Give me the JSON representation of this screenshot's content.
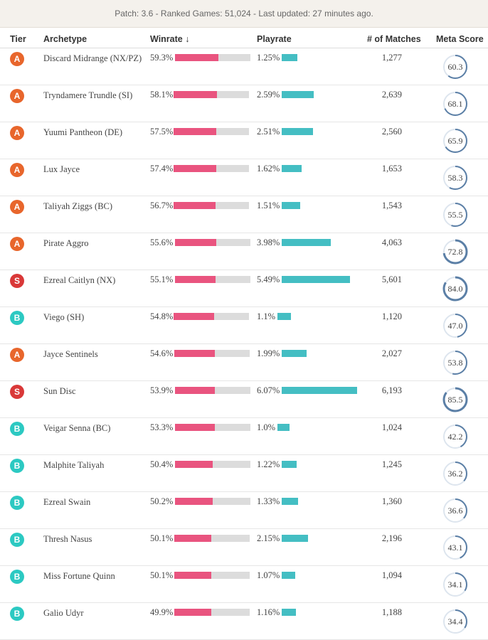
{
  "banner": {
    "text": "Patch: 3.6 - Ranked Games: 51,024 - Last updated: 27 minutes ago."
  },
  "header": {
    "tier": "Tier",
    "archetype": "Archetype",
    "winrate": "Winrate ↓",
    "playrate": "Playrate",
    "matches": "# of Matches",
    "meta": "Meta Score"
  },
  "colors": {
    "A": "#e8662c",
    "S": "#d93838",
    "B": "#2cc9c2",
    "ring": "#5b7fa6",
    "ring_track": "#dde5ee"
  },
  "rows": [
    {
      "tier": "A",
      "archetype": "Discard Midrange (NX/PZ)",
      "winrate": "59.3%",
      "wr_fill": 0.58,
      "playrate": "1.25%",
      "pr_val": 1.25,
      "matches": "1,277",
      "meta": "60.3",
      "meta_val": 60.3
    },
    {
      "tier": "A",
      "archetype": "Tryndamere Trundle (SI)",
      "winrate": "58.1%",
      "wr_fill": 0.58,
      "playrate": "2.59%",
      "pr_val": 2.59,
      "matches": "2,639",
      "meta": "68.1",
      "meta_val": 68.1
    },
    {
      "tier": "A",
      "archetype": "Yuumi Pantheon (DE)",
      "winrate": "57.5%",
      "wr_fill": 0.57,
      "playrate": "2.51%",
      "pr_val": 2.51,
      "matches": "2,560",
      "meta": "65.9",
      "meta_val": 65.9
    },
    {
      "tier": "A",
      "archetype": "Lux Jayce",
      "winrate": "57.4%",
      "wr_fill": 0.57,
      "playrate": "1.62%",
      "pr_val": 1.62,
      "matches": "1,653",
      "meta": "58.3",
      "meta_val": 58.3
    },
    {
      "tier": "A",
      "archetype": "Taliyah Ziggs (BC)",
      "winrate": "56.7%",
      "wr_fill": 0.56,
      "playrate": "1.51%",
      "pr_val": 1.51,
      "matches": "1,543",
      "meta": "55.5",
      "meta_val": 55.5
    },
    {
      "tier": "A",
      "archetype": "Pirate Aggro",
      "winrate": "55.6%",
      "wr_fill": 0.55,
      "playrate": "3.98%",
      "pr_val": 3.98,
      "matches": "4,063",
      "meta": "72.8",
      "meta_val": 72.8
    },
    {
      "tier": "S",
      "archetype": "Ezreal Caitlyn (NX)",
      "winrate": "55.1%",
      "wr_fill": 0.54,
      "playrate": "5.49%",
      "pr_val": 5.49,
      "matches": "5,601",
      "meta": "84.0",
      "meta_val": 84.0
    },
    {
      "tier": "B",
      "archetype": "Viego (SH)",
      "winrate": "54.8%",
      "wr_fill": 0.54,
      "playrate": "1.1%",
      "pr_val": 1.1,
      "matches": "1,120",
      "meta": "47.0",
      "meta_val": 47.0
    },
    {
      "tier": "A",
      "archetype": "Jayce Sentinels",
      "winrate": "54.6%",
      "wr_fill": 0.54,
      "playrate": "1.99%",
      "pr_val": 1.99,
      "matches": "2,027",
      "meta": "53.8",
      "meta_val": 53.8
    },
    {
      "tier": "S",
      "archetype": "Sun Disc",
      "winrate": "53.9%",
      "wr_fill": 0.53,
      "playrate": "6.07%",
      "pr_val": 6.07,
      "matches": "6,193",
      "meta": "85.5",
      "meta_val": 85.5
    },
    {
      "tier": "B",
      "archetype": "Veigar Senna (BC)",
      "winrate": "53.3%",
      "wr_fill": 0.53,
      "playrate": "1.0%",
      "pr_val": 1.0,
      "matches": "1,024",
      "meta": "42.2",
      "meta_val": 42.2
    },
    {
      "tier": "B",
      "archetype": "Malphite Taliyah",
      "winrate": "50.4%",
      "wr_fill": 0.5,
      "playrate": "1.22%",
      "pr_val": 1.22,
      "matches": "1,245",
      "meta": "36.2",
      "meta_val": 36.2
    },
    {
      "tier": "B",
      "archetype": "Ezreal Swain",
      "winrate": "50.2%",
      "wr_fill": 0.5,
      "playrate": "1.33%",
      "pr_val": 1.33,
      "matches": "1,360",
      "meta": "36.6",
      "meta_val": 36.6
    },
    {
      "tier": "B",
      "archetype": "Thresh Nasus",
      "winrate": "50.1%",
      "wr_fill": 0.49,
      "playrate": "2.15%",
      "pr_val": 2.15,
      "matches": "2,196",
      "meta": "43.1",
      "meta_val": 43.1
    },
    {
      "tier": "B",
      "archetype": "Miss Fortune Quinn",
      "winrate": "50.1%",
      "wr_fill": 0.49,
      "playrate": "1.07%",
      "pr_val": 1.07,
      "matches": "1,094",
      "meta": "34.1",
      "meta_val": 34.1
    },
    {
      "tier": "B",
      "archetype": "Galio Udyr",
      "winrate": "49.9%",
      "wr_fill": 0.49,
      "playrate": "1.16%",
      "pr_val": 1.16,
      "matches": "1,188",
      "meta": "34.4",
      "meta_val": 34.4
    }
  ]
}
